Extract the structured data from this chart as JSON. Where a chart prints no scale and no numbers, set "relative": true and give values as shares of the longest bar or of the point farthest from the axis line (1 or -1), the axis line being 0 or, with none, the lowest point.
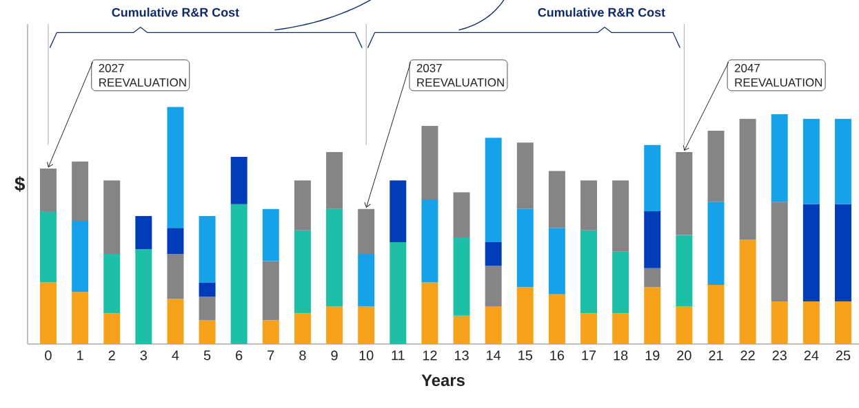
{
  "chart_data": {
    "type": "bar",
    "stacked": true,
    "relative": true,
    "xlabel": "Years",
    "ylabel": "$",
    "categories": [
      "0",
      "1",
      "2",
      "3",
      "4",
      "5",
      "6",
      "7",
      "8",
      "9",
      "10",
      "11",
      "12",
      "13",
      "14",
      "15",
      "16",
      "17",
      "18",
      "19",
      "20",
      "21",
      "22",
      "23",
      "24",
      "25"
    ],
    "series": [
      {
        "color": "#f7a21b",
        "values": [
          0.26,
          0.22,
          0.13,
          null,
          0.19,
          0.1,
          null,
          0.1,
          0.13,
          0.16,
          0.16,
          null,
          0.26,
          0.12,
          0.16,
          0.24,
          0.21,
          0.13,
          0.13,
          0.24,
          0.16,
          0.25,
          0.44,
          0.18,
          0.18,
          0.18
        ]
      },
      {
        "color": "#1dbfa6",
        "values": [
          0.3,
          null,
          0.25,
          0.4,
          null,
          null,
          0.59,
          null,
          0.35,
          0.41,
          null,
          0.43,
          null,
          0.33,
          null,
          null,
          null,
          0.35,
          0.26,
          null,
          0.3,
          null,
          null,
          null,
          null,
          null
        ]
      },
      {
        "color": "#858585",
        "values": [
          null,
          null,
          null,
          null,
          0.19,
          0.1,
          null,
          0.25,
          null,
          null,
          null,
          null,
          null,
          null,
          0.17,
          null,
          null,
          null,
          null,
          0.08,
          null,
          null,
          null,
          0.42,
          null,
          null
        ]
      },
      {
        "color": "#003bb8",
        "values": [
          null,
          null,
          null,
          0.14,
          0.11,
          0.06,
          0.2,
          null,
          null,
          null,
          null,
          0.26,
          null,
          null,
          0.1,
          null,
          null,
          null,
          null,
          0.24,
          null,
          null,
          null,
          null,
          0.41,
          0.41
        ]
      },
      {
        "color": "#16a2e9",
        "values": [
          null,
          0.3,
          null,
          null,
          0.51,
          0.28,
          null,
          0.22,
          null,
          null,
          0.22,
          null,
          0.35,
          null,
          0.44,
          0.33,
          0.28,
          null,
          null,
          0.28,
          null,
          0.35,
          null,
          0.37,
          0.36,
          0.36
        ]
      },
      {
        "color": "#858585",
        "values": [
          0.18,
          0.25,
          0.31,
          null,
          null,
          null,
          null,
          null,
          0.21,
          0.24,
          0.19,
          null,
          0.31,
          0.19,
          null,
          0.28,
          0.24,
          0.21,
          0.3,
          null,
          0.35,
          0.3,
          0.51,
          null,
          null,
          null
        ]
      }
    ],
    "annotations": [
      "Cumulative R&R Cost",
      "Cumulative R&R Cost",
      {
        "text": "2027 REEVALUATION",
        "x": "0",
        "y": 0.74
      },
      {
        "text": "2037 REEVALUATION",
        "x": "10",
        "y": 0.57
      },
      {
        "text": "2047 REEVALUATION",
        "x": "20",
        "y": 0.81
      }
    ],
    "ref_lines": [
      {
        "axis": "x",
        "value": "0",
        "color": "#aaaaaa"
      },
      {
        "axis": "x",
        "value": "10",
        "color": "#aaaaaa"
      },
      {
        "axis": "x",
        "value": "20",
        "color": "#aaaaaa"
      }
    ]
  }
}
